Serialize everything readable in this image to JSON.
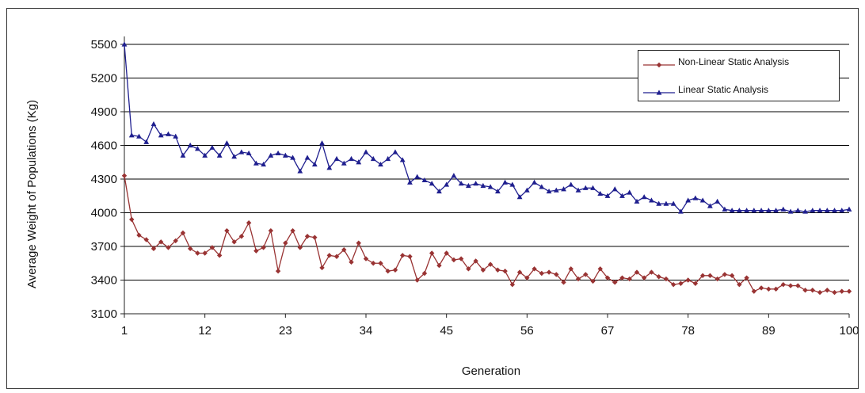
{
  "chart_data": {
    "type": "line",
    "title": "",
    "xlabel": "Generation",
    "ylabel": "Average Weight  of Populations   (Kg)",
    "xlim": [
      1,
      100
    ],
    "ylim": [
      3100,
      5500
    ],
    "xticks": [
      1,
      12,
      23,
      34,
      45,
      56,
      67,
      78,
      89,
      100
    ],
    "yticks": [
      3100,
      3400,
      3700,
      4000,
      4300,
      4600,
      4900,
      5200,
      5500
    ],
    "grid": "horizontal",
    "legend_position": "top-right",
    "series": [
      {
        "name": "Non-Linear Static Analysis",
        "color": "#993333",
        "marker": "diamond",
        "values": [
          4330,
          3940,
          3800,
          3760,
          3680,
          3740,
          3690,
          3750,
          3820,
          3680,
          3640,
          3640,
          3690,
          3620,
          3840,
          3740,
          3790,
          3910,
          3660,
          3690,
          3840,
          3480,
          3730,
          3840,
          3690,
          3790,
          3780,
          3510,
          3620,
          3610,
          3670,
          3560,
          3730,
          3590,
          3550,
          3550,
          3480,
          3490,
          3620,
          3610,
          3400,
          3460,
          3640,
          3530,
          3640,
          3580,
          3590,
          3500,
          3570,
          3490,
          3540,
          3490,
          3480,
          3360,
          3470,
          3420,
          3500,
          3460,
          3470,
          3450,
          3380,
          3500,
          3410,
          3450,
          3390,
          3500,
          3420,
          3380,
          3420,
          3410,
          3470,
          3420,
          3470,
          3430,
          3410,
          3360,
          3370,
          3400,
          3370,
          3440,
          3440,
          3410,
          3450,
          3440,
          3360,
          3420,
          3300,
          3330,
          3320,
          3320,
          3360,
          3350,
          3350,
          3310,
          3310,
          3290,
          3310,
          3290,
          3300,
          3300
        ]
      },
      {
        "name": "Linear Static Analysis",
        "color": "#1f1f8f",
        "marker": "triangle",
        "values": [
          5500,
          4690,
          4680,
          4630,
          4790,
          4690,
          4700,
          4680,
          4510,
          4600,
          4570,
          4510,
          4580,
          4510,
          4620,
          4500,
          4540,
          4530,
          4440,
          4430,
          4510,
          4530,
          4510,
          4490,
          4370,
          4490,
          4430,
          4620,
          4400,
          4480,
          4440,
          4480,
          4450,
          4540,
          4480,
          4430,
          4480,
          4540,
          4470,
          4270,
          4320,
          4290,
          4260,
          4190,
          4250,
          4330,
          4260,
          4240,
          4260,
          4240,
          4230,
          4190,
          4270,
          4250,
          4140,
          4200,
          4270,
          4230,
          4190,
          4200,
          4210,
          4250,
          4200,
          4220,
          4220,
          4170,
          4150,
          4210,
          4150,
          4180,
          4100,
          4140,
          4110,
          4080,
          4080,
          4080,
          4010,
          4110,
          4130,
          4110,
          4060,
          4100,
          4030,
          4020,
          4020,
          4020,
          4020,
          4020,
          4020,
          4020,
          4030,
          4010,
          4020,
          4010,
          4020,
          4020,
          4020,
          4020,
          4020,
          4030
        ]
      }
    ]
  }
}
